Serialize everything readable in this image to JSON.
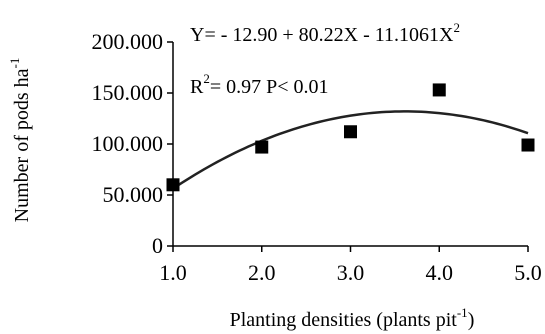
{
  "chart_data": {
    "type": "scatter",
    "title": "",
    "xlabel": "Planting densities (plants pit",
    "xlabel_sup": "-1",
    "xlabel_end": ")",
    "ylabel": "Number of pods ha",
    "ylabel_sup": "-1",
    "xlim": [
      1.0,
      5.0
    ],
    "ylim": [
      0,
      200000
    ],
    "x_ticks": [
      1.0,
      2.0,
      3.0,
      4.0,
      5.0
    ],
    "x_tick_labels": [
      "1.0",
      "2.0",
      "3.0",
      "4.0",
      "5.0"
    ],
    "y_ticks": [
      0,
      50000,
      100000,
      150000,
      200000
    ],
    "y_tick_labels": [
      "0",
      "50.000",
      "100.000",
      "150.000",
      "200.000"
    ],
    "grid": false,
    "series": [
      {
        "x": [
          1.0,
          2.0,
          3.0,
          4.0,
          5.0
        ],
        "y": [
          60000,
          97000,
          112000,
          153000,
          99000
        ],
        "marker": "square",
        "color": "#000000"
      }
    ],
    "fit": {
      "intercept": -12.9,
      "linear": 80.22,
      "quadratic": -11.1061,
      "scale": 1000,
      "color": "#222222"
    },
    "annotations": {
      "equation": "Y= - 12.90 + 80.22X - 11.1061X",
      "equation_sup": "2",
      "r2_prefix": "R",
      "r2_sup": "2",
      "r2_rest": "= 0.97  P< 0.01"
    }
  }
}
